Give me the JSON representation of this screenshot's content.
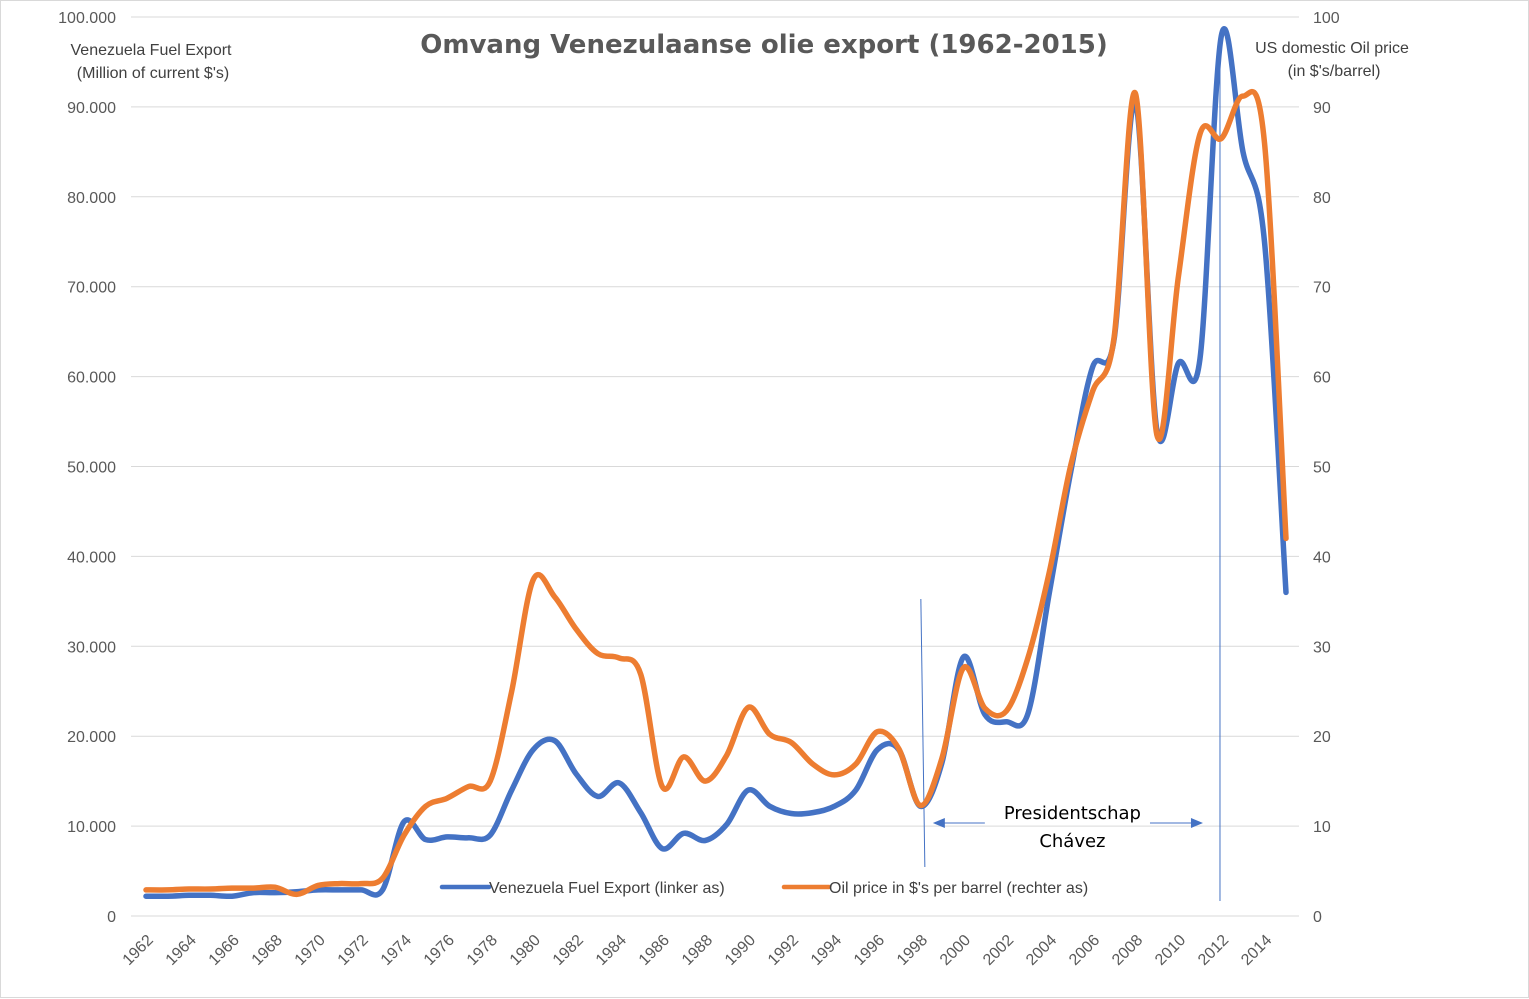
{
  "chart_data": {
    "type": "line",
    "title": "Omvang Venezulaanse olie export (1962-2015)",
    "y_left_label_lines": [
      "Venezuela Fuel Export",
      "(Million of current $'s)"
    ],
    "y_right_label_lines": [
      "US domestic Oil price",
      "(in $'s/barrel)"
    ],
    "x_tick_labels": [
      "1962",
      "1964",
      "1966",
      "1968",
      "1970",
      "1972",
      "1974",
      "1976",
      "1978",
      "1980",
      "1982",
      "1984",
      "1986",
      "1988",
      "1990",
      "1992",
      "1994",
      "1996",
      "1998",
      "2000",
      "2002",
      "2004",
      "2006",
      "2008",
      "2010",
      "2012",
      "2014"
    ],
    "y_left_ticks": [
      "0",
      "10.000",
      "20.000",
      "30.000",
      "40.000",
      "50.000",
      "60.000",
      "70.000",
      "80.000",
      "90.000",
      "100.000"
    ],
    "y_right_ticks": [
      "0",
      "10",
      "20",
      "30",
      "40",
      "50",
      "60",
      "70",
      "80",
      "90",
      "100"
    ],
    "y_left_range": [
      0,
      100000
    ],
    "y_right_range": [
      0,
      100
    ],
    "x_range": [
      1962,
      2015
    ],
    "grid": "horizontal",
    "legend_position": "bottom-inside",
    "x": [
      1962,
      1963,
      1964,
      1965,
      1966,
      1967,
      1968,
      1969,
      1970,
      1971,
      1972,
      1973,
      1974,
      1975,
      1976,
      1977,
      1978,
      1979,
      1980,
      1981,
      1982,
      1983,
      1984,
      1985,
      1986,
      1987,
      1988,
      1989,
      1990,
      1991,
      1992,
      1993,
      1994,
      1995,
      1996,
      1997,
      1998,
      1999,
      2000,
      2001,
      2002,
      2003,
      2004,
      2005,
      2006,
      2007,
      2008,
      2009,
      2010,
      2011,
      2012,
      2013,
      2014,
      2015
    ],
    "series": [
      {
        "name": "Venezuela Fuel Export (linker as)",
        "axis": "left",
        "color": "#4472c4",
        "values": [
          2200,
          2200,
          2300,
          2300,
          2200,
          2600,
          2600,
          2700,
          2900,
          2900,
          2900,
          2900,
          10500,
          8500,
          8800,
          8700,
          9000,
          14000,
          18500,
          19500,
          15800,
          13300,
          14800,
          11500,
          7500,
          9200,
          8400,
          10200,
          14000,
          12200,
          11400,
          11500,
          12200,
          14000,
          18500,
          18500,
          12200,
          17000,
          28800,
          22400,
          21600,
          22500,
          36000,
          49500,
          61000,
          64000,
          90500,
          54000,
          61500,
          62000,
          98000,
          85000,
          75000,
          36000
        ]
      },
      {
        "name": "Oil price in $'s per barrel (rechter as)",
        "axis": "right",
        "color": "#ed7d31",
        "values": [
          2.9,
          2.9,
          3.0,
          3.0,
          3.1,
          3.1,
          3.2,
          2.4,
          3.4,
          3.6,
          3.6,
          4.2,
          9.0,
          12.2,
          13.1,
          14.4,
          15.0,
          25.0,
          37.4,
          35.5,
          31.9,
          29.2,
          28.7,
          26.9,
          14.4,
          17.7,
          15.0,
          17.9,
          23.2,
          20.2,
          19.3,
          16.9,
          15.7,
          16.9,
          20.5,
          18.6,
          12.3,
          17.5,
          27.6,
          23.1,
          22.8,
          28.7,
          38.3,
          50.2,
          58.3,
          64.2,
          91.5,
          53.5,
          71.2,
          87.0,
          86.5,
          91.2,
          86.0,
          42.0
        ]
      }
    ],
    "annotation": {
      "text_lines": [
        "Presidentschap",
        "Chávez"
      ],
      "start_year": 1999,
      "end_year": 2013
    }
  }
}
